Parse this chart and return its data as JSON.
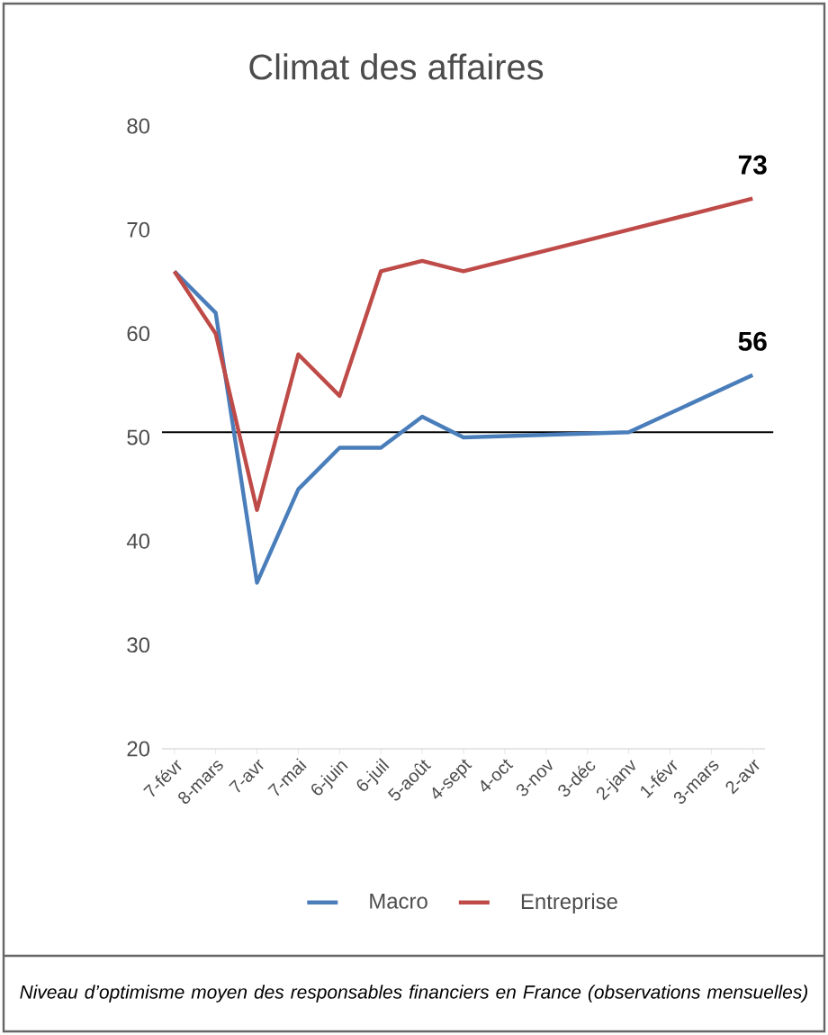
{
  "chart_data": {
    "type": "line",
    "title": "Climat des affaires",
    "categories": [
      "7-févr",
      "8-mars",
      "7-avr",
      "7-mai",
      "6-juin",
      "6-juil",
      "5-août",
      "4-sept",
      "4-oct",
      "3-nov",
      "3-déc",
      "2-janv",
      "1-févr",
      "3-mars",
      "2-avr"
    ],
    "series": [
      {
        "name": "Macro",
        "color": "#4a7ebb",
        "values": [
          66,
          62,
          36,
          45,
          49,
          49,
          52,
          50,
          null,
          null,
          null,
          50.5,
          null,
          null,
          56
        ],
        "value_labels": [
          null,
          null,
          null,
          null,
          null,
          null,
          null,
          null,
          null,
          null,
          null,
          null,
          null,
          null,
          "56"
        ]
      },
      {
        "name": "Entreprise",
        "color": "#be4b48",
        "values": [
          66,
          60,
          43,
          58,
          54,
          66,
          67,
          66,
          null,
          null,
          null,
          null,
          null,
          null,
          73
        ],
        "value_labels": [
          null,
          null,
          null,
          null,
          null,
          null,
          null,
          null,
          null,
          null,
          null,
          null,
          null,
          null,
          "73"
        ]
      }
    ],
    "ylim": [
      20,
      80
    ],
    "yticks": [
      20,
      30,
      40,
      50,
      60,
      70,
      80
    ],
    "ref_lines": [
      {
        "axis": "y",
        "value": 50.5,
        "color": "#000000"
      }
    ],
    "legend": "bottom",
    "grid": false,
    "marker": "none",
    "line_style": "solid",
    "annotations": [
      "Niveau d’optimisme moyen des responsables financiers en France (observations mensuelles)"
    ]
  }
}
